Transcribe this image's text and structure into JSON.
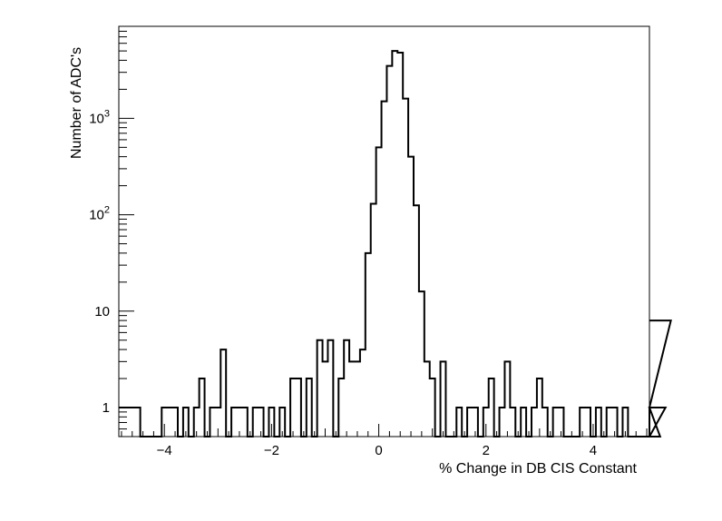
{
  "chart_data": {
    "type": "histogram",
    "xlabel": "% Change in DB CIS Constant",
    "ylabel": "Number of ADC's",
    "xlim": [
      -4.85,
      5.05
    ],
    "ylim": [
      0.5,
      9000
    ],
    "log_y": true,
    "grid": false,
    "bin_width": 0.1,
    "x_start": -4.85,
    "x_ticks": [
      {
        "value": -4,
        "label": "−4"
      },
      {
        "value": -2,
        "label": "−2"
      },
      {
        "value": 0,
        "label": "0"
      },
      {
        "value": 2,
        "label": "2"
      },
      {
        "value": 4,
        "label": "4"
      }
    ],
    "y_ticks": [
      {
        "value": 1,
        "base": "1",
        "exp": ""
      },
      {
        "value": 10,
        "base": "10",
        "exp": ""
      },
      {
        "value": 100,
        "base": "10",
        "exp": "2"
      },
      {
        "value": 1000,
        "base": "10",
        "exp": "3"
      }
    ],
    "counts": [
      1,
      1,
      1,
      1,
      0,
      0,
      0,
      0,
      1,
      1,
      1,
      0,
      1,
      0,
      1,
      2,
      0,
      1,
      1,
      4,
      0,
      1,
      1,
      1,
      0,
      1,
      1,
      0,
      1,
      0,
      1,
      0,
      2,
      2,
      0,
      2,
      0,
      5,
      3,
      5,
      0,
      2,
      5,
      3,
      3,
      4,
      40,
      130,
      500,
      1500,
      3500,
      5000,
      4800,
      1600,
      400,
      125,
      16,
      3,
      2,
      0,
      3,
      0,
      0,
      1,
      0,
      1,
      1,
      0,
      1,
      2,
      0,
      1,
      3,
      1,
      0,
      1,
      0,
      1,
      2,
      1,
      0,
      1,
      1,
      0,
      0,
      0,
      1,
      1,
      0,
      1,
      0,
      1,
      1,
      0,
      1,
      0,
      0,
      0,
      0,
      1,
      1,
      0,
      1,
      8
    ]
  }
}
